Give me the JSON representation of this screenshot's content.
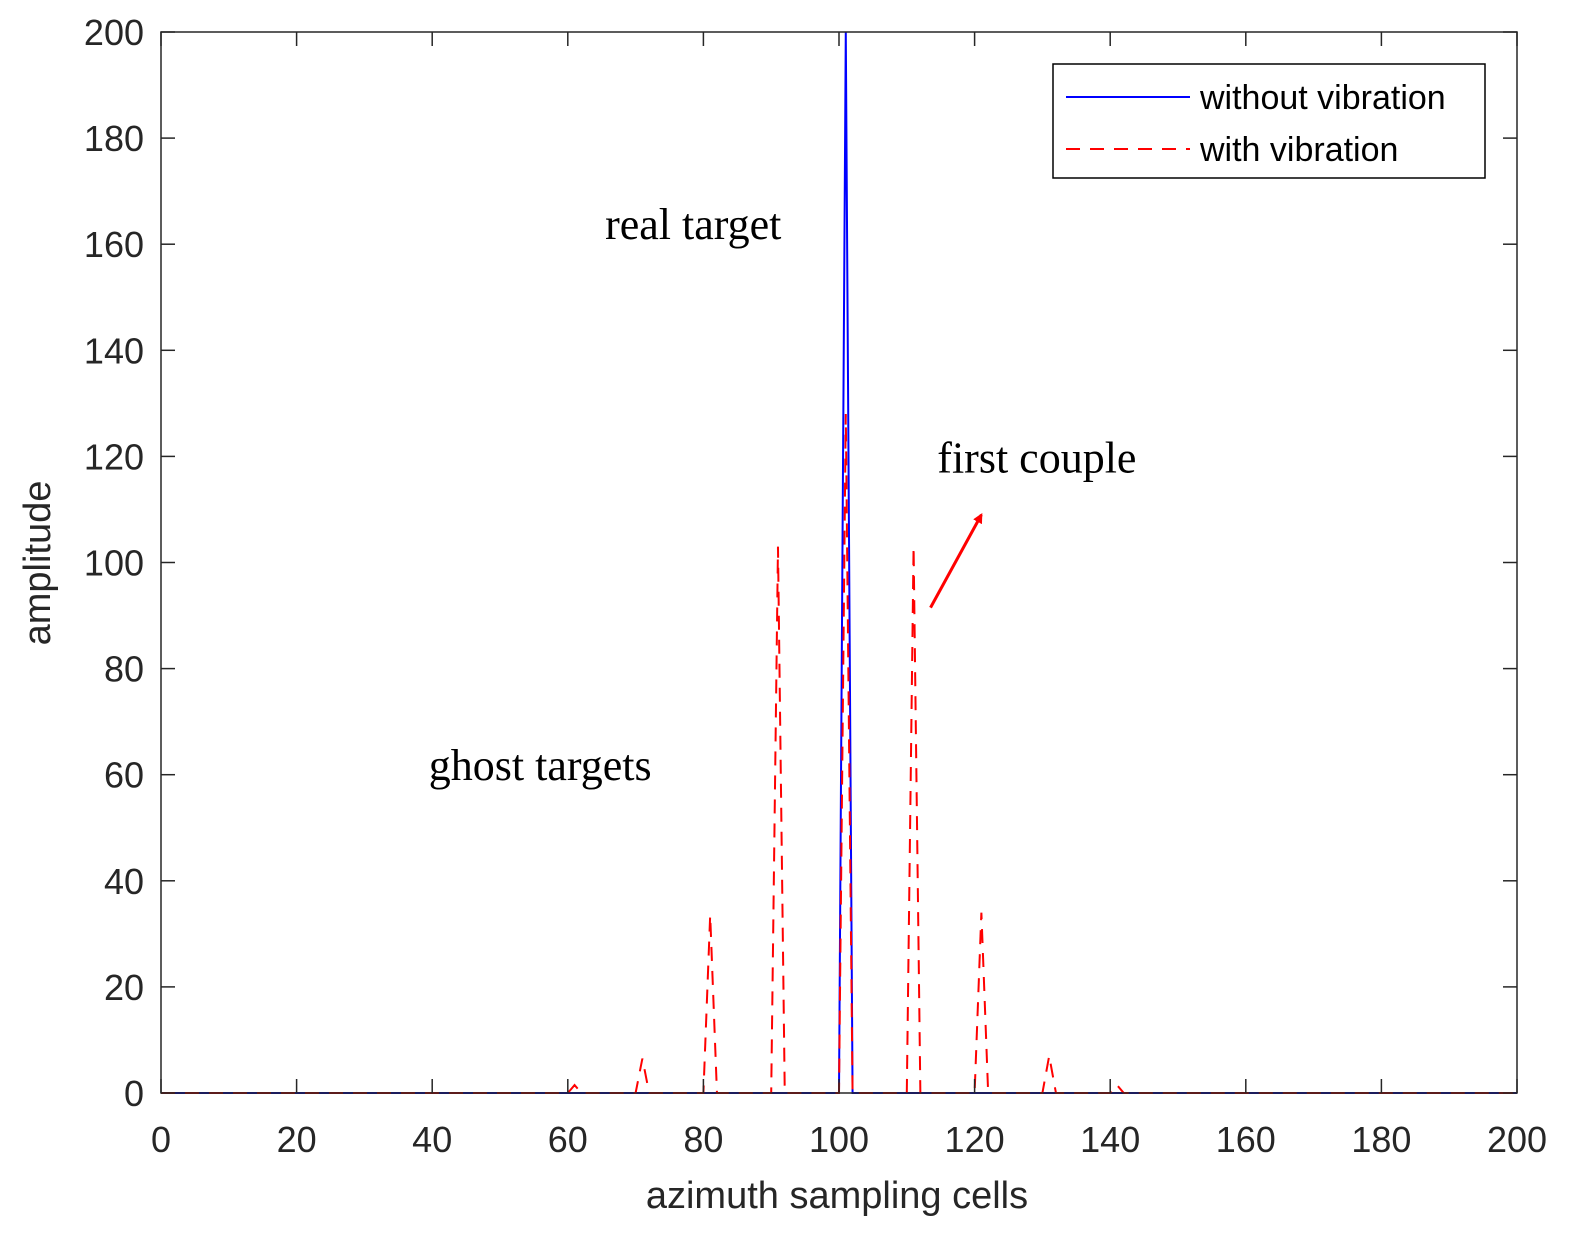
{
  "chart_data": {
    "type": "line",
    "title": "",
    "xlabel": "azimuth sampling cells",
    "ylabel": "amplitude",
    "xlim": [
      0,
      200
    ],
    "ylim": [
      0,
      200
    ],
    "xticks": [
      0,
      20,
      40,
      60,
      80,
      100,
      120,
      140,
      160,
      180,
      200
    ],
    "yticks": [
      0,
      20,
      40,
      60,
      80,
      100,
      120,
      140,
      160,
      180,
      200
    ],
    "xtick_labels": [
      "0",
      "20",
      "40",
      "60",
      "80",
      "100",
      "120",
      "140",
      "160",
      "180",
      "200"
    ],
    "ytick_labels": [
      "0",
      "20",
      "40",
      "60",
      "80",
      "100",
      "120",
      "140",
      "160",
      "180",
      "200"
    ],
    "grid": false,
    "legend_position": "top-right",
    "series": [
      {
        "name": "without vibration",
        "color": "#0000ff",
        "line_style": "solid",
        "x": [
          0,
          100,
          101,
          102,
          200
        ],
        "y": [
          0,
          0,
          200,
          0,
          0
        ]
      },
      {
        "name": "with vibration",
        "color": "#ff0000",
        "line_style": "dashed",
        "x": [
          0,
          60,
          61,
          62,
          70,
          71,
          72,
          80,
          81,
          82,
          90,
          91,
          92,
          100,
          101,
          102,
          110,
          111,
          112,
          120,
          121,
          122,
          130,
          131,
          132,
          140,
          141,
          142,
          200
        ],
        "y": [
          0,
          0,
          1.5,
          0,
          0,
          6.5,
          0,
          0,
          33.5,
          0,
          0,
          103,
          0,
          0,
          128,
          0,
          0,
          103,
          0,
          0,
          34,
          0,
          0,
          7,
          0,
          0,
          1.5,
          0,
          0
        ]
      }
    ],
    "annotations": [
      {
        "text": "real target",
        "x": 65.5,
        "y": 161,
        "arrow": false
      },
      {
        "text": "first couple",
        "x": 114.5,
        "y": 117,
        "arrow": false
      },
      {
        "text": "ghost targets",
        "x": 39.5,
        "y": 59,
        "arrow": false
      },
      {
        "text": "",
        "arrow": true,
        "color": "#ff0000",
        "from": [
          113.5,
          91.5
        ],
        "to": [
          121,
          109
        ]
      }
    ]
  }
}
